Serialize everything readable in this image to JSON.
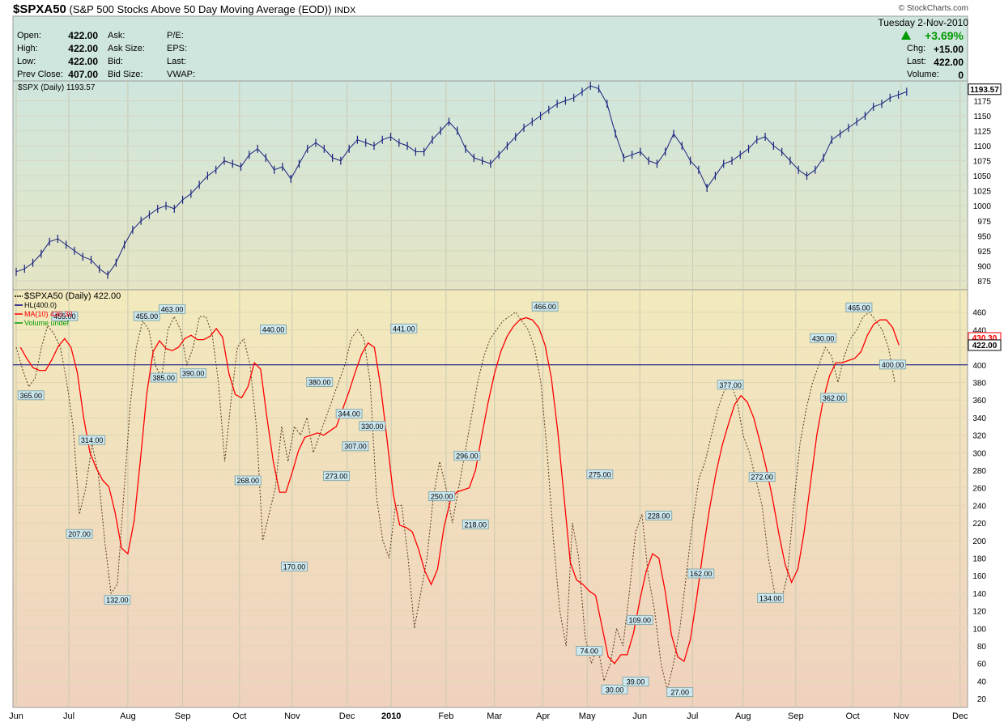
{
  "header": {
    "symbol": "$SPXA50",
    "description": "(S&P 500 Stocks Above 50 Day Moving Average (EOD))",
    "exchange": "INDX",
    "copyright": "© StockCharts.com",
    "date": "Tuesday  2-Nov-2010",
    "change_pct": "+3.69%",
    "stats_left": [
      {
        "label": "Open:",
        "value": "422.00"
      },
      {
        "label": "High:",
        "value": "422.00"
      },
      {
        "label": "Low:",
        "value": "422.00"
      },
      {
        "label": "Prev Close:",
        "value": "407.00"
      }
    ],
    "stats_mid": [
      "Ask:",
      "Ask Size:",
      "Bid:",
      "Bid Size:"
    ],
    "stats_mid2": [
      "P/E:",
      "EPS:",
      "Last:",
      "VWAP:"
    ],
    "stats_right": [
      {
        "label": "Chg:",
        "value": "+15.00"
      },
      {
        "label": "Last:",
        "value": "422.00"
      },
      {
        "label": "Volume:",
        "value": "0"
      }
    ]
  },
  "colors": {
    "spx": "#1a237e",
    "spxa": "#000000",
    "ma": "#ff0000",
    "hl": "#000080",
    "label_bg": "#cde8f0",
    "up": "#009900"
  },
  "chart_data": [
    {
      "type": "line",
      "title": "$SPX (Daily) 1193.57",
      "series": [
        {
          "name": "$SPX (Daily) 1193.57",
          "style": "ohlc-bars"
        }
      ],
      "last_value": "1193.57",
      "ylim": [
        860,
        1200
      ],
      "yticks": [
        875,
        900,
        925,
        950,
        975,
        1000,
        1025,
        1050,
        1075,
        1100,
        1125,
        1150,
        1175
      ],
      "x": [
        0,
        5,
        10,
        15,
        20,
        25,
        30,
        35,
        40,
        45,
        50,
        55,
        60,
        65,
        70,
        75,
        80,
        85,
        90,
        95,
        100,
        105,
        110,
        115,
        120,
        125,
        130,
        135,
        140,
        145,
        150,
        155,
        160,
        165,
        170,
        175,
        180,
        185,
        190,
        195,
        200,
        205,
        210,
        215,
        220,
        225,
        230,
        235,
        240,
        245,
        250,
        255,
        260,
        265,
        270,
        275,
        280,
        285,
        290,
        295,
        300,
        305,
        310,
        315,
        320,
        325,
        330,
        335,
        340,
        345,
        350,
        355,
        360,
        365,
        370,
        375,
        380,
        385,
        390,
        395,
        400,
        405,
        410,
        415,
        420,
        425,
        430,
        435,
        440,
        445,
        450,
        455,
        460,
        465,
        470,
        475,
        480,
        485,
        490,
        495,
        500,
        505,
        510,
        515,
        520,
        525,
        530,
        535
      ],
      "values": [
        890,
        895,
        905,
        920,
        940,
        945,
        935,
        925,
        915,
        910,
        895,
        885,
        905,
        935,
        960,
        975,
        985,
        995,
        1000,
        995,
        1010,
        1020,
        1035,
        1050,
        1060,
        1075,
        1070,
        1065,
        1085,
        1095,
        1080,
        1060,
        1065,
        1045,
        1070,
        1095,
        1105,
        1095,
        1080,
        1075,
        1095,
        1110,
        1105,
        1100,
        1110,
        1115,
        1105,
        1100,
        1090,
        1090,
        1110,
        1125,
        1140,
        1125,
        1095,
        1080,
        1075,
        1070,
        1085,
        1100,
        1115,
        1130,
        1140,
        1150,
        1160,
        1170,
        1175,
        1180,
        1190,
        1200,
        1195,
        1170,
        1120,
        1080,
        1085,
        1090,
        1075,
        1070,
        1090,
        1120,
        1100,
        1075,
        1060,
        1030,
        1050,
        1070,
        1075,
        1085,
        1095,
        1110,
        1115,
        1100,
        1090,
        1075,
        1060,
        1050,
        1060,
        1080,
        1110,
        1120,
        1130,
        1140,
        1150,
        1165,
        1170,
        1180,
        1185,
        1190
      ]
    },
    {
      "type": "line",
      "series": [
        {
          "name": "$SPXA50 (Daily) 422.00",
          "style": "dotted"
        },
        {
          "name": "HL(400.0)",
          "value": 400
        },
        {
          "name": "MA(10) 430.30",
          "style": "solid"
        },
        {
          "name": "Volume undef"
        }
      ],
      "last_values": [
        "430.30",
        "422.00",
        "400.00"
      ],
      "ylim": [
        10,
        480
      ],
      "yticks": [
        20,
        40,
        60,
        80,
        100,
        120,
        140,
        160,
        180,
        200,
        220,
        240,
        260,
        280,
        300,
        320,
        340,
        360,
        380,
        400,
        420,
        440,
        460
      ],
      "x_labels": [
        "Jun",
        "Jul",
        "Aug",
        "Sep",
        "Oct",
        "Nov",
        "Dec",
        "2010",
        "Feb",
        "Mar",
        "Apr",
        "May",
        "Jun",
        "Jul",
        "Aug",
        "Sep",
        "Oct",
        "Nov",
        "Dec"
      ],
      "x_label_pos": [
        0,
        25,
        53,
        79,
        106,
        131,
        157,
        178,
        204,
        227,
        250,
        271,
        296,
        321,
        345,
        370,
        397,
        420,
        448
      ],
      "annotations": [
        {
          "x": 7,
          "y": 365,
          "label": "365.00"
        },
        {
          "x": 23,
          "y": 455,
          "label": "455.00"
        },
        {
          "x": 36,
          "y": 314,
          "label": "314.00"
        },
        {
          "x": 30,
          "y": 207,
          "label": "207.00"
        },
        {
          "x": 48,
          "y": 132,
          "label": "132.00"
        },
        {
          "x": 62,
          "y": 455,
          "label": "455.00"
        },
        {
          "x": 74,
          "y": 463,
          "label": "463.00"
        },
        {
          "x": 70,
          "y": 385,
          "label": "385.00"
        },
        {
          "x": 84,
          "y": 390,
          "label": "390.00"
        },
        {
          "x": 110,
          "y": 268,
          "label": "268.00"
        },
        {
          "x": 122,
          "y": 440,
          "label": "440.00"
        },
        {
          "x": 144,
          "y": 380,
          "label": "380.00"
        },
        {
          "x": 132,
          "y": 170,
          "label": "170.00"
        },
        {
          "x": 152,
          "y": 273,
          "label": "273.00"
        },
        {
          "x": 158,
          "y": 344,
          "label": "344.00"
        },
        {
          "x": 161,
          "y": 307,
          "label": "307.00"
        },
        {
          "x": 169,
          "y": 330,
          "label": "330.00"
        },
        {
          "x": 184,
          "y": 441,
          "label": "441.00"
        },
        {
          "x": 202,
          "y": 250,
          "label": "250.00"
        },
        {
          "x": 214,
          "y": 296,
          "label": "296.00"
        },
        {
          "x": 218,
          "y": 218,
          "label": "218.00"
        },
        {
          "x": 251,
          "y": 466,
          "label": "466.00"
        },
        {
          "x": 277,
          "y": 275,
          "label": "275.00"
        },
        {
          "x": 272,
          "y": 74,
          "label": "74.00"
        },
        {
          "x": 284,
          "y": 30,
          "label": "30.00"
        },
        {
          "x": 296,
          "y": 109,
          "label": "109.00"
        },
        {
          "x": 294,
          "y": 39,
          "label": "39.00"
        },
        {
          "x": 305,
          "y": 228,
          "label": "228.00"
        },
        {
          "x": 315,
          "y": 27,
          "label": "27.00"
        },
        {
          "x": 325,
          "y": 162,
          "label": "162.00"
        },
        {
          "x": 339,
          "y": 377,
          "label": "377.00"
        },
        {
          "x": 354,
          "y": 272,
          "label": "272.00"
        },
        {
          "x": 358,
          "y": 134,
          "label": "134.00"
        },
        {
          "x": 383,
          "y": 430,
          "label": "430.00"
        },
        {
          "x": 388,
          "y": 362,
          "label": "362.00"
        },
        {
          "x": 400,
          "y": 465,
          "label": "465.00"
        },
        {
          "x": 416,
          "y": 400,
          "label": "400.00"
        }
      ],
      "dotted_values_x": [
        0,
        3,
        6,
        9,
        12,
        15,
        18,
        21,
        24,
        27,
        30,
        33,
        36,
        39,
        42,
        45,
        48,
        51,
        54,
        57,
        60,
        63,
        66,
        69,
        72,
        75,
        78,
        81,
        84,
        87,
        90,
        93,
        96,
        99,
        102,
        105,
        108,
        111,
        114,
        117,
        120,
        123,
        126,
        129,
        132,
        135,
        138,
        141,
        144,
        147,
        150,
        153,
        156,
        159,
        162,
        165,
        168,
        171,
        174,
        177,
        180,
        183,
        186,
        189,
        192,
        195,
        198,
        201,
        204,
        207,
        210,
        213,
        216,
        219,
        222,
        225,
        228,
        231,
        234,
        237,
        240,
        243,
        246,
        249,
        252,
        255,
        258,
        261,
        264,
        267,
        270,
        273,
        276,
        279,
        282,
        285,
        288,
        291,
        294,
        297,
        300,
        303,
        306,
        309,
        312,
        315,
        318,
        321,
        324,
        327,
        330,
        333,
        336,
        339,
        342,
        345,
        348,
        351,
        354,
        357,
        360,
        363,
        366,
        369,
        372,
        375,
        378,
        381,
        384,
        387,
        390,
        393,
        396,
        399,
        402,
        405,
        408,
        411,
        414,
        417
      ],
      "dotted_values": [
        420,
        395,
        375,
        385,
        420,
        445,
        435,
        420,
        380,
        330,
        230,
        260,
        310,
        275,
        200,
        140,
        150,
        250,
        350,
        420,
        450,
        440,
        400,
        385,
        440,
        455,
        440,
        400,
        420,
        455,
        455,
        435,
        380,
        290,
        360,
        420,
        430,
        400,
        330,
        200,
        230,
        260,
        330,
        290,
        330,
        320,
        340,
        300,
        320,
        340,
        360,
        380,
        400,
        430,
        440,
        430,
        380,
        250,
        200,
        180,
        240,
        240,
        180,
        100,
        140,
        180,
        250,
        290,
        260,
        220,
        260,
        300,
        340,
        380,
        410,
        430,
        440,
        450,
        455,
        460,
        450,
        440,
        420,
        380,
        300,
        200,
        120,
        80,
        220,
        180,
        90,
        60,
        80,
        40,
        60,
        100,
        80,
        140,
        210,
        230,
        160,
        120,
        60,
        30,
        60,
        100,
        160,
        220,
        270,
        290,
        320,
        350,
        370,
        380,
        360,
        320,
        300,
        270,
        240,
        180,
        140,
        130,
        160,
        240,
        310,
        350,
        380,
        400,
        420,
        410,
        380,
        410,
        430,
        440,
        455,
        460,
        450,
        440,
        420,
        380
      ]
    }
  ]
}
